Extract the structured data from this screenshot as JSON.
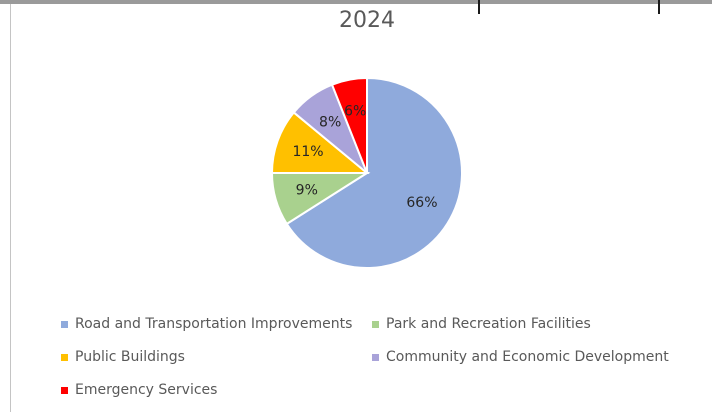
{
  "chart_data": {
    "type": "pie",
    "title": "2024",
    "categories": [
      "Road and Transportation Improvements",
      "Park and Recreation Facilities",
      "Public Buildings",
      "Community and Economic Development",
      "Emergency Services"
    ],
    "values": [
      66,
      9,
      11,
      8,
      6
    ],
    "labels": [
      "66%",
      "9%",
      "11%",
      "8%",
      "6%"
    ],
    "colors": [
      "#8faadc",
      "#a9d18e",
      "#ffc000",
      "#a9a3d9",
      "#ff0000"
    ],
    "legend_position": "bottom"
  }
}
